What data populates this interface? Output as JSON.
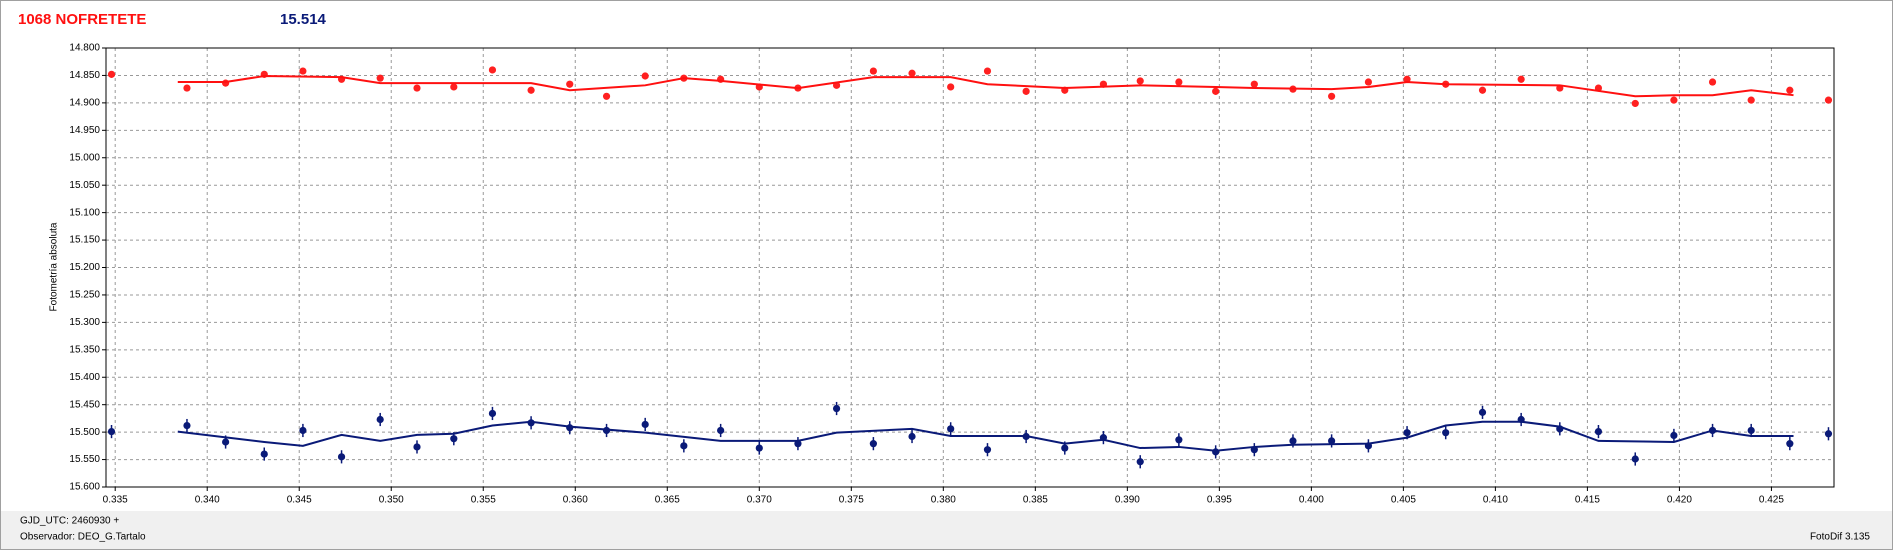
{
  "chart_data": {
    "type": "scatter",
    "title": "1068 NOFRETETE",
    "subtitle": "15.514",
    "y_label": "Fotometría absoluta",
    "footer": [
      "GJD_UTC: 2460930 +",
      "Observador: DEO_G.Tartalo"
    ],
    "footer_right": "FotoDif 3.135",
    "xlim": [
      0.3345,
      0.4284
    ],
    "ylim": [
      15.6,
      14.8
    ],
    "xticks": [
      0.335,
      {
        "value": 0.34,
        "label": "0.340"
      },
      0.345,
      {
        "value": 0.35,
        "label": "0.350"
      },
      0.355,
      {
        "value": 0.36,
        "label": "0.360"
      },
      0.365,
      {
        "value": 0.37,
        "label": "0.370"
      },
      0.375,
      {
        "value": 0.38,
        "label": "0.380"
      },
      0.385,
      {
        "value": 0.39,
        "label": "0.390"
      },
      0.395,
      {
        "value": 0.4,
        "label": "0.400"
      },
      0.405,
      {
        "value": 0.41,
        "label": "0.410"
      },
      0.415,
      {
        "value": 0.42,
        "label": "0.420"
      },
      0.425
    ],
    "yticks": [
      {
        "value": 14.8,
        "label": "14.800"
      },
      {
        "value": 14.85,
        "label": "14.850"
      },
      {
        "value": 14.9,
        "label": "14.900"
      },
      {
        "value": 14.95,
        "label": "14.950"
      },
      {
        "value": 15.0,
        "label": "15.000"
      },
      {
        "value": 15.05,
        "label": "15.050"
      },
      {
        "value": 15.1,
        "label": "15.100"
      },
      {
        "value": 15.15,
        "label": "15.150"
      },
      {
        "value": 15.2,
        "label": "15.200"
      },
      {
        "value": 15.25,
        "label": "15.250"
      },
      {
        "value": 15.3,
        "label": "15.300"
      },
      {
        "value": 15.35,
        "label": "15.350"
      },
      {
        "value": 15.4,
        "label": "15.400"
      },
      {
        "value": 15.45,
        "label": "15.450"
      },
      {
        "value": 15.5,
        "label": "15.500"
      },
      {
        "value": 15.55,
        "label": "15.550"
      },
      {
        "value": 15.6,
        "label": "15.600"
      }
    ],
    "grid": true,
    "series": [
      {
        "type": "scatter",
        "color": "#ff2020",
        "error": 0.006,
        "x": [
          0.3348,
          0.3389,
          0.341,
          0.3431,
          0.3452,
          0.3473,
          0.3494,
          0.3514,
          0.3534,
          0.3555,
          0.3576,
          0.3597,
          0.3617,
          0.3638,
          0.3659,
          0.3679,
          0.37,
          0.3721,
          0.3742,
          0.3762,
          0.3783,
          0.3804,
          0.3824,
          0.3845,
          0.3866,
          0.3887,
          0.3907,
          0.3928,
          0.3948,
          0.3969,
          0.399,
          0.4011,
          0.4031,
          0.4052,
          0.4073,
          0.4093,
          0.4114,
          0.4135,
          0.4156,
          0.4176,
          0.4197,
          0.4218,
          0.4239,
          0.426,
          0.4281
        ],
        "values": [
          14.848,
          14.873,
          14.864,
          14.848,
          14.842,
          14.857,
          14.855,
          14.873,
          14.871,
          14.84,
          14.877,
          14.866,
          14.888,
          14.851,
          14.855,
          14.857,
          14.871,
          14.873,
          14.868,
          14.842,
          14.846,
          14.871,
          14.842,
          14.879,
          14.877,
          14.866,
          14.86,
          14.862,
          14.879,
          14.866,
          14.875,
          14.888,
          14.862,
          14.857,
          14.866,
          14.877,
          14.857,
          14.873,
          14.873,
          14.901,
          14.895,
          14.862,
          14.895,
          14.877,
          14.895
        ]
      },
      {
        "type": "scatter",
        "color": "#0a1a78",
        "error": 0.012,
        "x": [
          0.3348,
          0.3389,
          0.341,
          0.3431,
          0.3452,
          0.3473,
          0.3494,
          0.3514,
          0.3534,
          0.3555,
          0.3576,
          0.3597,
          0.3617,
          0.3638,
          0.3659,
          0.3679,
          0.37,
          0.3721,
          0.3742,
          0.3762,
          0.3783,
          0.3804,
          0.3824,
          0.3845,
          0.3866,
          0.3887,
          0.3907,
          0.3928,
          0.3948,
          0.3969,
          0.399,
          0.4011,
          0.4031,
          0.4052,
          0.4073,
          0.4093,
          0.4114,
          0.4135,
          0.4156,
          0.4176,
          0.4197,
          0.4218,
          0.4239,
          0.426,
          0.4281
        ],
        "values": [
          15.499,
          15.488,
          15.518,
          15.54,
          15.497,
          15.545,
          15.477,
          15.527,
          15.512,
          15.466,
          15.483,
          15.492,
          15.497,
          15.486,
          15.525,
          15.497,
          15.529,
          15.521,
          15.457,
          15.521,
          15.508,
          15.494,
          15.532,
          15.508,
          15.529,
          15.51,
          15.554,
          15.514,
          15.536,
          15.532,
          15.516,
          15.516,
          15.525,
          15.501,
          15.501,
          15.464,
          15.477,
          15.494,
          15.499,
          15.549,
          15.506,
          15.497,
          15.497,
          15.521,
          15.503
        ]
      },
      {
        "type": "line",
        "color": "#ff1010",
        "x": [
          0.3384,
          0.341,
          0.3431,
          0.3473,
          0.3494,
          0.3514,
          0.3576,
          0.3597,
          0.3638,
          0.3659,
          0.3679,
          0.3721,
          0.3762,
          0.3804,
          0.3824,
          0.3866,
          0.3907,
          0.3948,
          0.3969,
          0.4011,
          0.4031,
          0.4052,
          0.4073,
          0.4135,
          0.4176,
          0.4197,
          0.4218,
          0.4239,
          0.4262
        ],
        "values": [
          14.862,
          14.862,
          14.851,
          14.853,
          14.864,
          14.864,
          14.864,
          14.877,
          14.868,
          14.855,
          14.86,
          14.873,
          14.853,
          14.853,
          14.866,
          14.873,
          14.868,
          14.871,
          14.873,
          14.875,
          14.871,
          14.862,
          14.866,
          14.868,
          14.888,
          14.886,
          14.886,
          14.877,
          14.886
        ]
      },
      {
        "type": "line",
        "color": "#0a1a78",
        "x": [
          0.3384,
          0.3431,
          0.3452,
          0.3473,
          0.3494,
          0.3514,
          0.3534,
          0.3555,
          0.3576,
          0.3597,
          0.3638,
          0.3679,
          0.3721,
          0.3742,
          0.3783,
          0.3804,
          0.3845,
          0.3866,
          0.3887,
          0.3907,
          0.3928,
          0.3948,
          0.3969,
          0.399,
          0.4031,
          0.4052,
          0.4073,
          0.4093,
          0.4114,
          0.4135,
          0.4156,
          0.4197,
          0.4218,
          0.4239,
          0.4262
        ],
        "values": [
          15.499,
          15.518,
          15.525,
          15.505,
          15.516,
          15.505,
          15.503,
          15.488,
          15.481,
          15.49,
          15.501,
          15.516,
          15.516,
          15.501,
          15.494,
          15.507,
          15.507,
          15.521,
          15.514,
          15.529,
          15.527,
          15.534,
          15.527,
          15.523,
          15.521,
          15.51,
          15.488,
          15.481,
          15.481,
          15.49,
          15.516,
          15.518,
          15.497,
          15.507,
          15.507
        ]
      }
    ]
  }
}
